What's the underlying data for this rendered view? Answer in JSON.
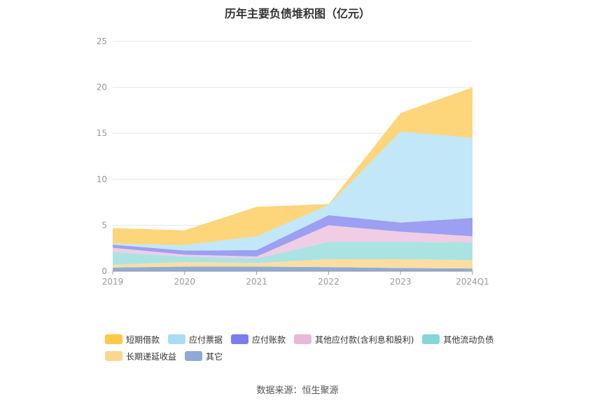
{
  "chart_data": {
    "type": "area",
    "stacked": true,
    "title": "历年主要负债堆积图（亿元）",
    "categories": [
      "2019",
      "2020",
      "2021",
      "2022",
      "2023",
      "2024Q1"
    ],
    "ylim": [
      0,
      25
    ],
    "yticks": [
      0,
      5,
      10,
      15,
      20,
      25
    ],
    "grid": true,
    "legend_position": "bottom",
    "series": [
      {
        "name": "其它",
        "color": "#8eabd8",
        "values": [
          0.4,
          0.5,
          0.5,
          0.45,
          0.35,
          0.3
        ]
      },
      {
        "name": "长期递延收益",
        "color": "#fddda0",
        "values": [
          0.3,
          0.5,
          0.4,
          0.85,
          0.95,
          0.9
        ]
      },
      {
        "name": "其他流动负债",
        "color": "#abe3e3",
        "values": [
          1.4,
          0.6,
          0.5,
          1.9,
          1.9,
          1.95
        ]
      },
      {
        "name": "其他应付款(含利息和股利)",
        "color": "#f0cde4",
        "values": [
          0.45,
          0.2,
          0.2,
          1.8,
          1.1,
          0.65
        ]
      },
      {
        "name": "应付账款",
        "color": "#9d9ff2",
        "values": [
          0.35,
          0.45,
          0.7,
          1.1,
          1.0,
          2.0
        ]
      },
      {
        "name": "应付票据",
        "color": "#c1e7f8",
        "values": [
          0.1,
          0.6,
          1.5,
          1.1,
          9.9,
          8.7
        ]
      },
      {
        "name": "短期借款",
        "color": "#fdd57a",
        "values": [
          1.7,
          1.6,
          3.2,
          0.1,
          2.0,
          5.5
        ]
      }
    ]
  },
  "legend": {
    "rows": [
      [
        {
          "label": "短期借款",
          "color": "#fbc946"
        },
        {
          "label": "应付票据",
          "color": "#aadcf5"
        },
        {
          "label": "应付账款",
          "color": "#7a7cf0"
        },
        {
          "label": "其他应付款(含利息和股利)",
          "color": "#e8b8d8"
        },
        {
          "label": "其他流动负债",
          "color": "#86d6d8"
        }
      ],
      [
        {
          "label": "长期递延收益",
          "color": "#fcd591"
        },
        {
          "label": "其它",
          "color": "#8ea9d6"
        }
      ]
    ]
  },
  "source": "数据来源：恒生聚源"
}
